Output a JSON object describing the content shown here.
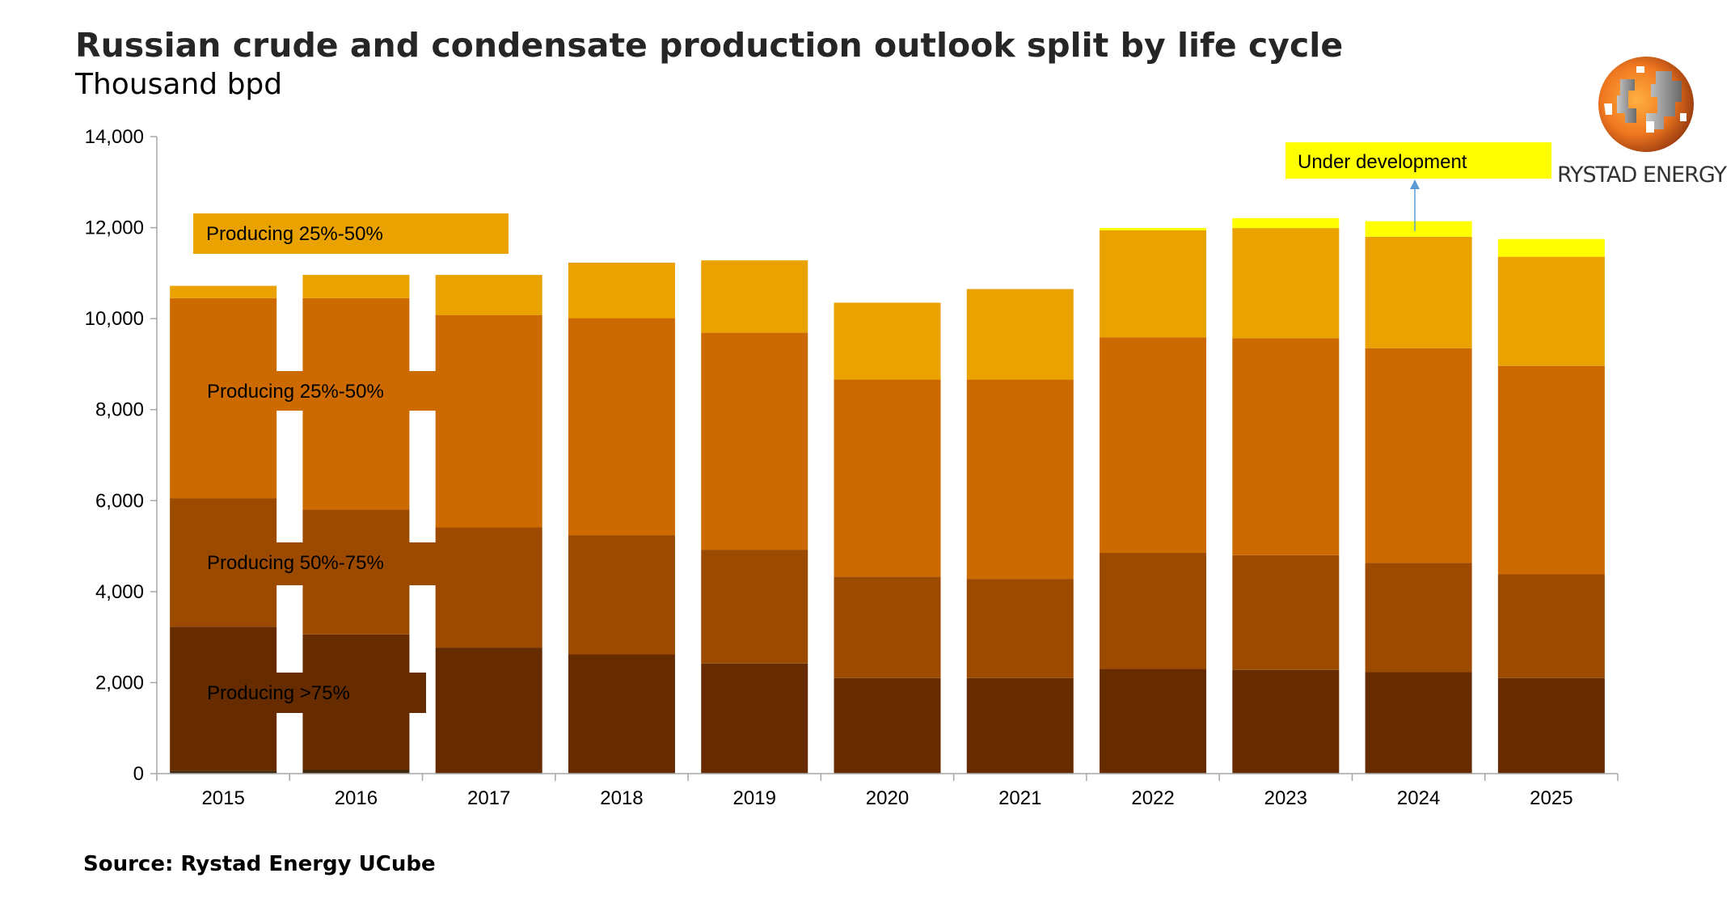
{
  "title": "Russian crude and condensate production outlook split by life cycle",
  "subtitle": "Thousand bpd",
  "source": "Source: Rystad Energy UCube",
  "logo": {
    "text": "RYSTAD ENERGY",
    "icon": "globe-logo-icon"
  },
  "chart_data": {
    "type": "bar",
    "stacked": true,
    "title": "Russian crude and condensate production outlook split by life cycle",
    "ylabel": "Thousand bpd",
    "xlabel": "",
    "ylim": [
      0,
      14000
    ],
    "yticks": [
      0,
      2000,
      4000,
      6000,
      8000,
      10000,
      12000,
      14000
    ],
    "ytick_labels": [
      "0",
      "2,000",
      "4,000",
      "6,000",
      "8,000",
      "10,000",
      "12,000",
      "14,000"
    ],
    "grid": false,
    "categories": [
      "2015",
      "2016",
      "2017",
      "2018",
      "2019",
      "2020",
      "2021",
      "2022",
      "2023",
      "2024",
      "2025"
    ],
    "series": [
      {
        "color": "#3b2a0e",
        "values": [
          60,
          80,
          0,
          0,
          0,
          0,
          0,
          0,
          0,
          0,
          0
        ]
      },
      {
        "name": "Producing >75%",
        "color": "#662c00",
        "values": [
          3170,
          2980,
          2770,
          2620,
          2420,
          2100,
          2100,
          2300,
          2280,
          2230,
          2100
        ]
      },
      {
        "name": "Producing 50%-75%",
        "color": "#9c4a00",
        "values": [
          2820,
          2740,
          2640,
          2620,
          2500,
          2230,
          2180,
          2550,
          2520,
          2400,
          2280
        ]
      },
      {
        "name": "Producing 25%-50%",
        "color": "#cc6a00",
        "values": [
          4400,
          4650,
          4670,
          4770,
          4770,
          4330,
          4380,
          4740,
          4770,
          4720,
          4580
        ]
      },
      {
        "name": "Producing 25%-50%",
        "color": "#eaa200",
        "values": [
          270,
          510,
          880,
          1220,
          1590,
          1690,
          1990,
          2350,
          2420,
          2450,
          2400
        ]
      },
      {
        "name": "Under development",
        "color": "#ffff00",
        "values": [
          0,
          0,
          0,
          0,
          0,
          0,
          0,
          50,
          220,
          340,
          390
        ]
      }
    ],
    "annotations": [
      {
        "text": "Producing 25%-50%",
        "color": "#eaa200"
      },
      {
        "text": "Producing 25%-50%",
        "color": "#cc6a00"
      },
      {
        "text": "Producing 50%-75%",
        "color": "#9c4a00"
      },
      {
        "text": "Producing >75%",
        "color": "#662c00"
      },
      {
        "text": "Under development",
        "color": "#ffff00",
        "arrow_color": "#5b9bd5"
      }
    ]
  }
}
